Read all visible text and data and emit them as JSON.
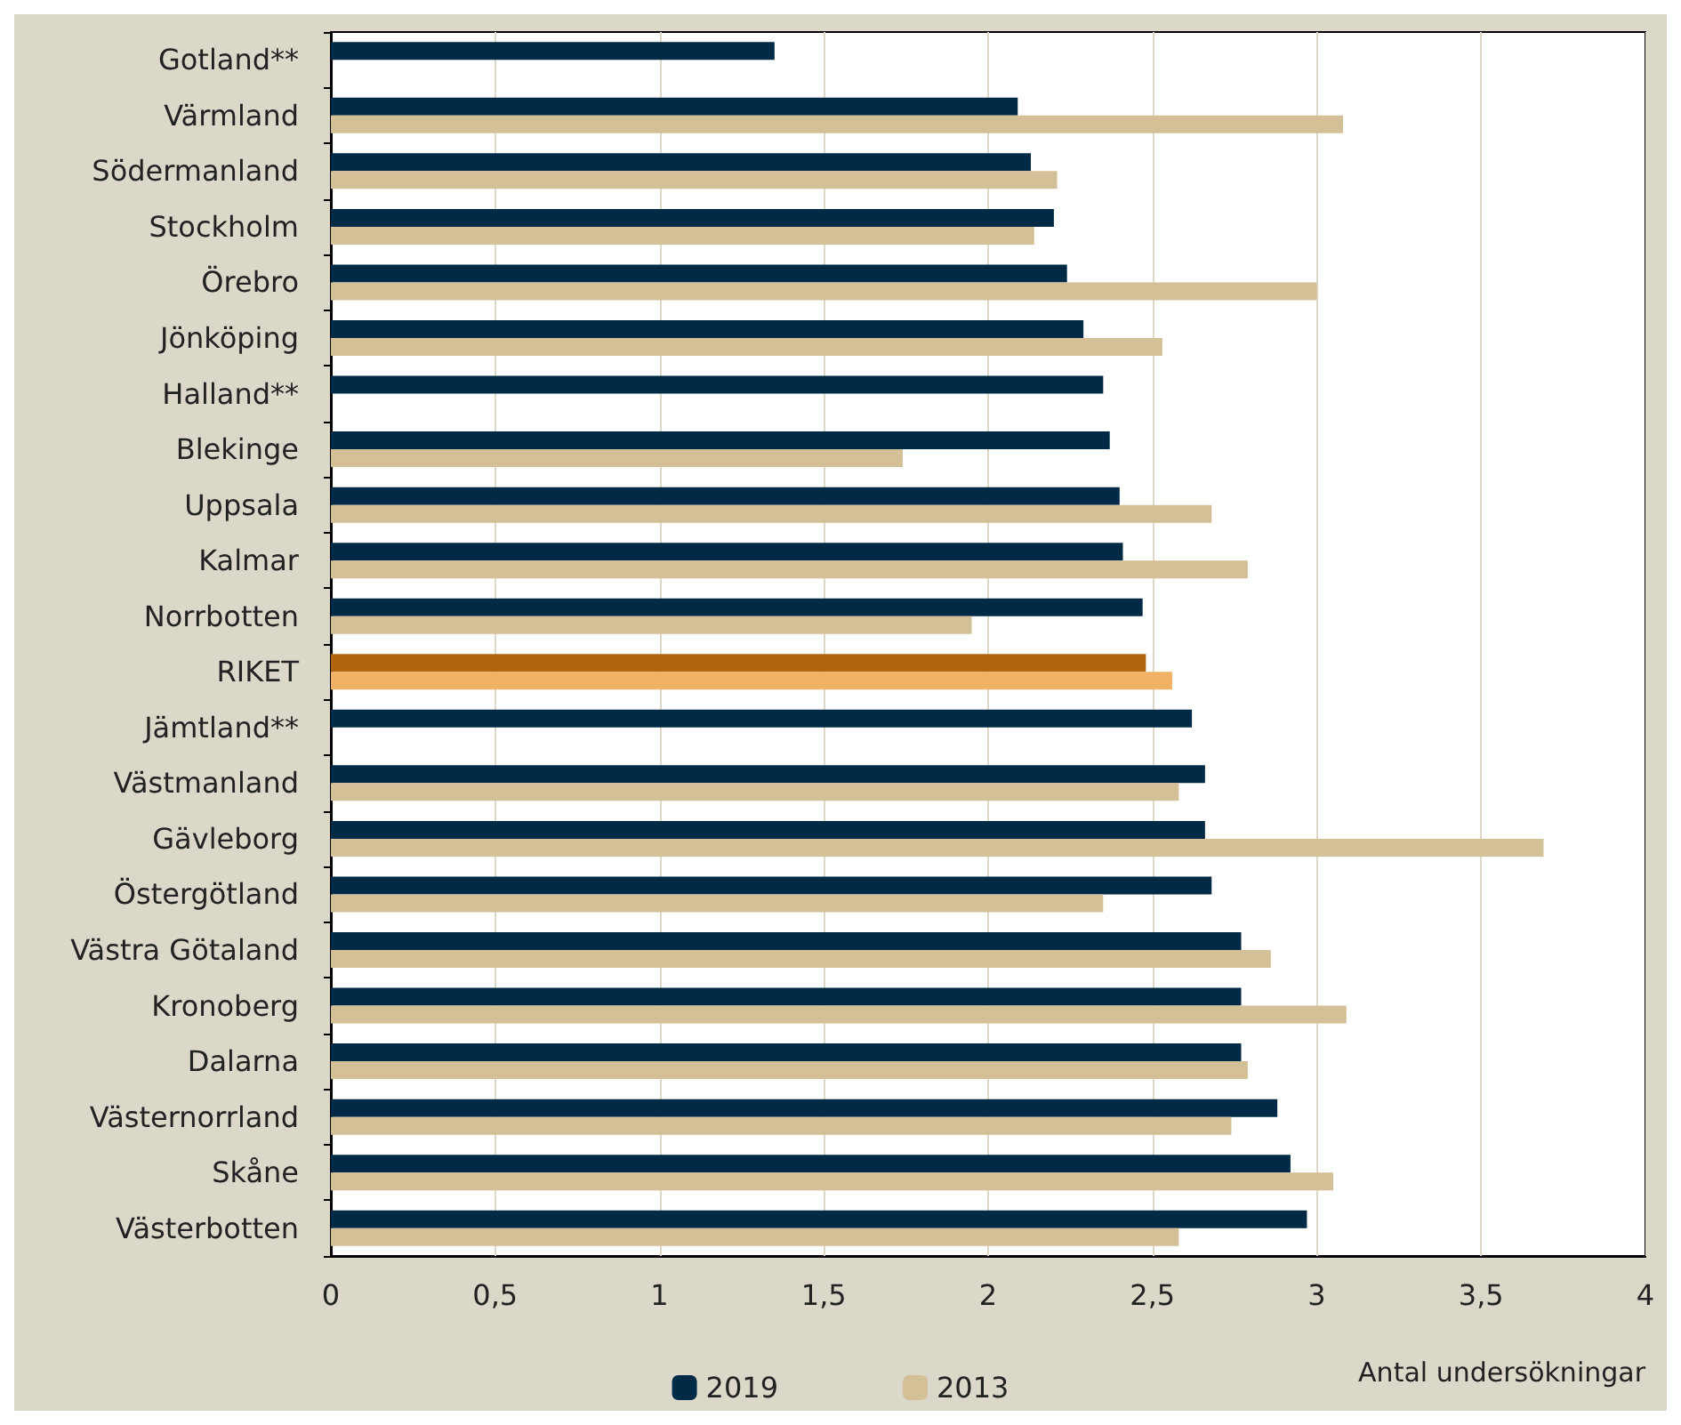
{
  "chart_data": {
    "type": "bar",
    "orientation": "horizontal",
    "xlabel": "Antal undersökningar",
    "categories": [
      "Gotland**",
      "Värmland",
      "Södermanland",
      "Stockholm",
      "Örebro",
      "Jönköping",
      "Halland**",
      "Blekinge",
      "Uppsala",
      "Kalmar",
      "Norrbotten",
      "RIKET",
      "Jämtland**",
      "Västmanland",
      "Gävleborg",
      "Östergötland",
      "Västra Götaland",
      "Kronoberg",
      "Dalarna",
      "Västernorrland",
      "Skåne",
      "Västerbotten"
    ],
    "series": [
      {
        "name": "2019",
        "color": "#002a45",
        "colors": [
          "#002a45",
          "#002a45",
          "#002a45",
          "#002a45",
          "#002a45",
          "#002a45",
          "#002a45",
          "#002a45",
          "#002a45",
          "#002a45",
          "#002a45",
          "#b0640e",
          "#002a45",
          "#002a45",
          "#002a45",
          "#002a45",
          "#002a45",
          "#002a45",
          "#002a45",
          "#002a45",
          "#002a45",
          "#002a45"
        ],
        "values": [
          1.35,
          2.09,
          2.13,
          2.2,
          2.24,
          2.29,
          2.35,
          2.37,
          2.4,
          2.41,
          2.47,
          2.48,
          2.62,
          2.66,
          2.66,
          2.68,
          2.77,
          2.77,
          2.77,
          2.88,
          2.92,
          2.97
        ]
      },
      {
        "name": "2013",
        "color": "#d4c096",
        "colors": [
          "#d4c096",
          "#d4c096",
          "#d4c096",
          "#d4c096",
          "#d4c096",
          "#d4c096",
          "#d4c096",
          "#d4c096",
          "#d4c096",
          "#d4c096",
          "#d4c096",
          "#f2b266",
          "#d4c096",
          "#d4c096",
          "#d4c096",
          "#d4c096",
          "#d4c096",
          "#d4c096",
          "#d4c096",
          "#d4c096",
          "#d4c096",
          "#d4c096"
        ],
        "values": [
          null,
          3.08,
          2.21,
          2.14,
          3.0,
          2.53,
          null,
          1.74,
          2.68,
          2.79,
          1.95,
          2.56,
          null,
          2.58,
          3.69,
          2.35,
          2.86,
          3.09,
          2.79,
          2.74,
          3.05,
          2.58
        ]
      }
    ],
    "xlim": [
      0,
      4
    ],
    "xticks": [
      {
        "value": 0,
        "label": "0"
      },
      {
        "value": 0.5,
        "label": "0,5"
      },
      {
        "value": 1,
        "label": "1"
      },
      {
        "value": 1.5,
        "label": "1,5"
      },
      {
        "value": 2,
        "label": "2"
      },
      {
        "value": 2.5,
        "label": "2,5"
      },
      {
        "value": 3,
        "label": "3"
      },
      {
        "value": 3.5,
        "label": "3,5"
      },
      {
        "value": 4,
        "label": "4"
      }
    ],
    "grid": "x",
    "legend": "bottom"
  }
}
